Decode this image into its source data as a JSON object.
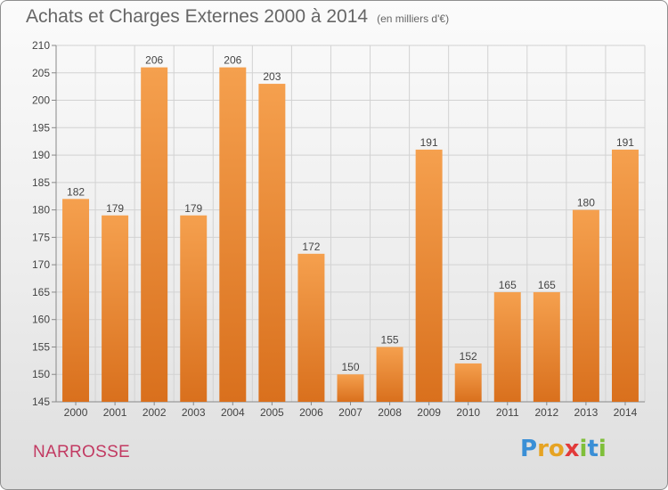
{
  "header": {
    "title": "Achats et Charges Externes 2000 à 2014",
    "unit": "(en milliers d'€)"
  },
  "footer": {
    "location": "NARROSSE",
    "brand_letters": [
      {
        "char": "P",
        "color": "#3a8fd6"
      },
      {
        "char": "r",
        "color": "#e6a323"
      },
      {
        "char": "o",
        "color": "#e6a323"
      },
      {
        "char": "x",
        "color": "#e23a3a"
      },
      {
        "char": "i",
        "color": "#7fbf3a"
      },
      {
        "char": "t",
        "color": "#3a8fd6"
      },
      {
        "char": "i",
        "color": "#7fbf3a"
      }
    ]
  },
  "chart_data": {
    "type": "bar",
    "categories": [
      "2000",
      "2001",
      "2002",
      "2003",
      "2004",
      "2005",
      "2006",
      "2007",
      "2008",
      "2009",
      "2010",
      "2011",
      "2012",
      "2013",
      "2014"
    ],
    "values": [
      182,
      179,
      206,
      179,
      206,
      203,
      172,
      150,
      155,
      191,
      152,
      165,
      165,
      180,
      191
    ],
    "ylim": [
      145,
      210
    ],
    "yticks": [
      145,
      150,
      155,
      160,
      165,
      170,
      175,
      180,
      185,
      190,
      195,
      200,
      205,
      210
    ],
    "grid": true,
    "bar_color_top": "#f5a04e",
    "bar_color_bottom": "#d9701d"
  }
}
